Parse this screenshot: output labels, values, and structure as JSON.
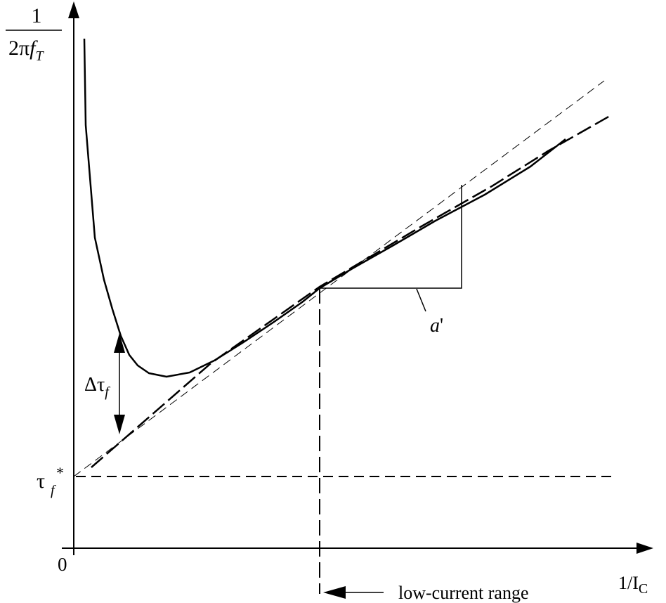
{
  "y_axis_label": {
    "numerator": "1",
    "denominator_prefix": "2π",
    "denominator_var": "f",
    "denominator_sub": "T"
  },
  "x_axis_label": {
    "main": "1/I",
    "sub": "C"
  },
  "origin_label": "0",
  "intercept_label": {
    "symbol": "τ",
    "sub": "f",
    "sup": "*"
  },
  "delta_label": {
    "prefix": "Δτ",
    "sub": "f"
  },
  "slope_label": {
    "var": "a",
    "prime": "'"
  },
  "range_label": "low-current range",
  "colors": {
    "ink": "#000000",
    "background": "#ffffff"
  }
}
